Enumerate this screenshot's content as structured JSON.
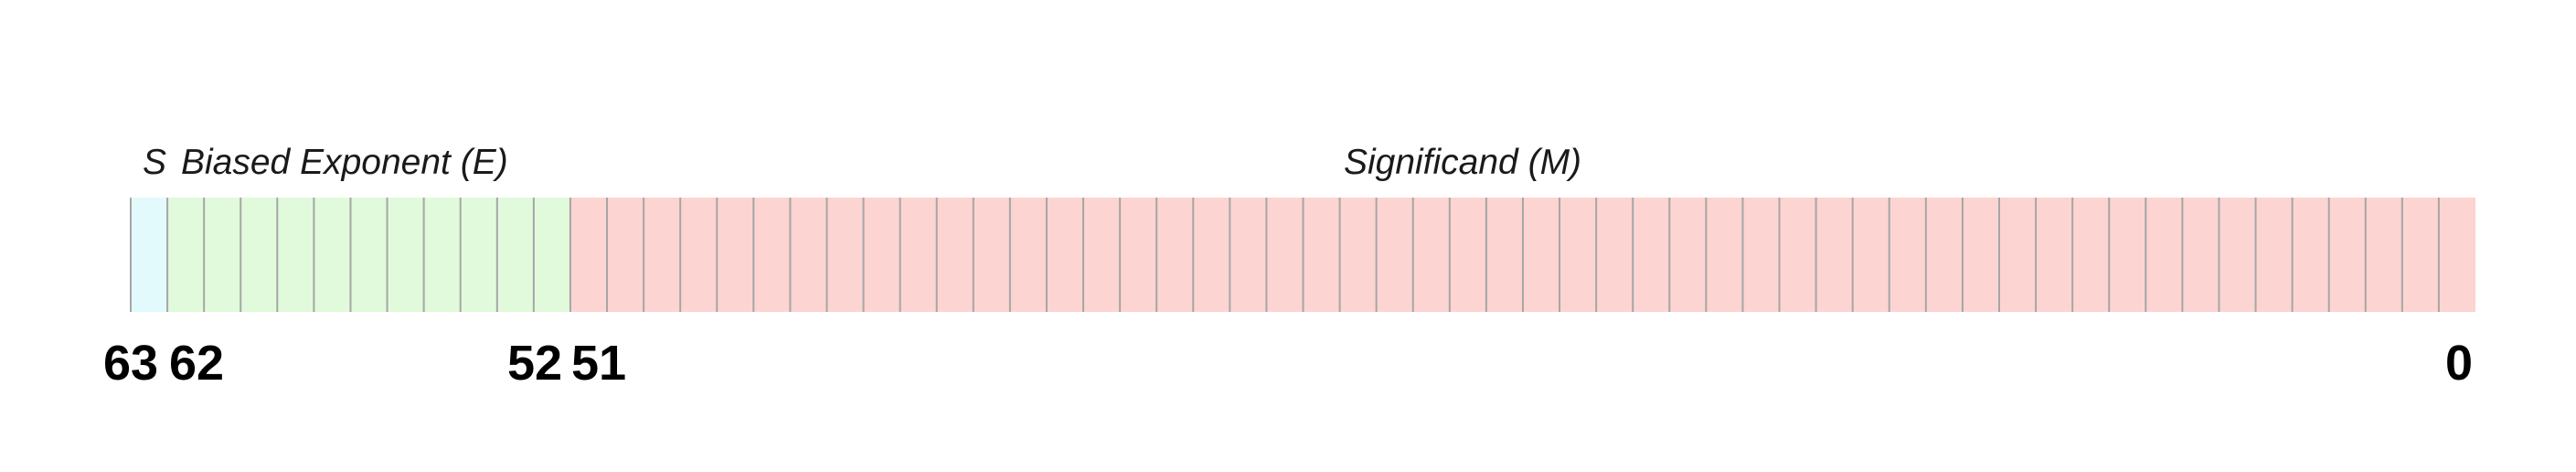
{
  "format": {
    "total_bits": 64,
    "fields": [
      {
        "key": "sign",
        "label": "S",
        "bits": 1,
        "color": "#e3fafc"
      },
      {
        "key": "exponent",
        "label": "Biased Exponent (E)",
        "bits": 11,
        "color": "#e1fadb"
      },
      {
        "key": "significand",
        "label": "Significand (M)",
        "bits": 52,
        "color": "#fcd4d2"
      }
    ],
    "divider_color": "#a6a6a6",
    "bit_labels": [
      {
        "bit": 63,
        "text": "63"
      },
      {
        "bit": 62,
        "text": "62"
      },
      {
        "bit": 52,
        "text": "52"
      },
      {
        "bit": 51,
        "text": "51"
      },
      {
        "bit": 0,
        "text": "0"
      }
    ]
  }
}
